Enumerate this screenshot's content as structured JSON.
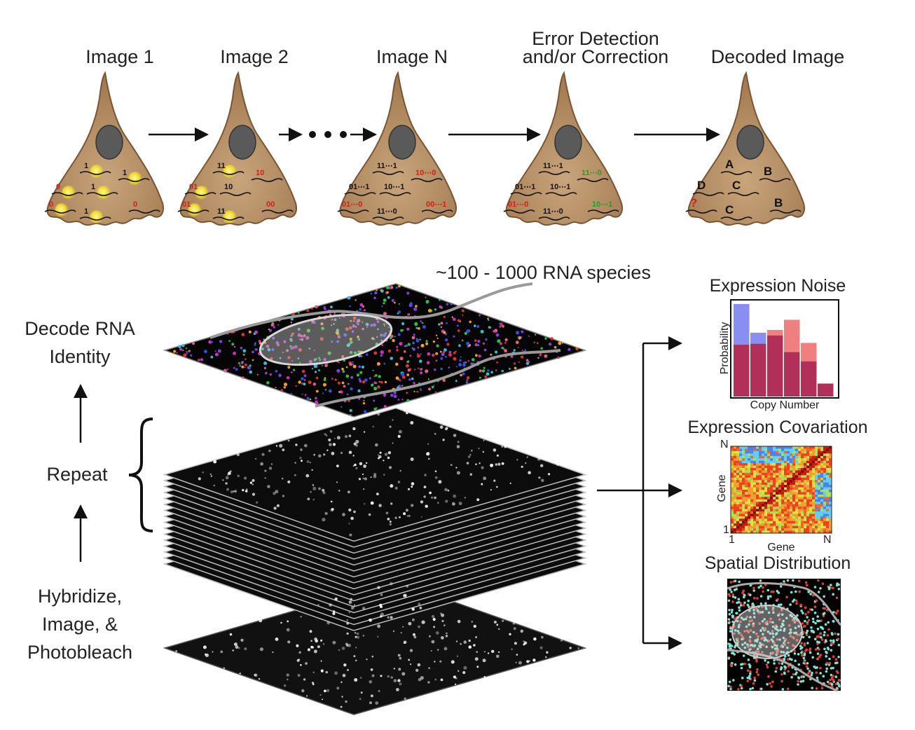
{
  "steps": [
    {
      "label": "Image 1"
    },
    {
      "label": "Image 2"
    },
    {
      "label": "Image N"
    },
    {
      "label_line1": "Error Detection",
      "label_line2": "and/or Correction"
    },
    {
      "label": "Decoded Image"
    }
  ],
  "cell_codes": {
    "image1": [
      "1",
      "1",
      "0",
      "1",
      "1",
      "0",
      "0"
    ],
    "image2": [
      "11",
      "10",
      "01",
      "10",
      "11",
      "00",
      "01"
    ],
    "imageN": [
      "11⋯1",
      "10⋯0",
      "01⋯1",
      "10⋯1",
      "11⋯0",
      "00⋯1",
      "01⋯0"
    ],
    "error": [
      "11⋯1",
      "11⋯0",
      "01⋯1",
      "10⋯1",
      "11⋯0",
      "10⋯1",
      "01⋯0"
    ],
    "decoded": [
      "A",
      "B",
      "D",
      "C",
      "C",
      "B",
      "?"
    ]
  },
  "species_label": "~100 - 1000 RNA species",
  "left_labels": {
    "decode_line1": "Decode RNA",
    "decode_line2": "Identity",
    "repeat": "Repeat",
    "hyb_line1": "Hybridize,",
    "hyb_line2": "Image, &",
    "hyb_line3": "Photobleach"
  },
  "noise_panel": {
    "title": "Expression Noise",
    "ylabel": "Probability",
    "xlabel": "Copy Number"
  },
  "covariation_panel": {
    "title": "Expression Covariation",
    "ylabel": "Gene",
    "xlabel": "Gene",
    "y_top": "N",
    "y_bottom": "1",
    "x_left": "1",
    "x_right": "N"
  },
  "spatial_panel": {
    "title": "Spatial Distribution"
  },
  "chart_data": {
    "type": "bar",
    "title": "Expression Noise",
    "xlabel": "Copy Number",
    "ylabel": "Probability",
    "series": [
      {
        "color": "#8a8ef0",
        "values": [
          1.0,
          0.69,
          0.0,
          0.0,
          0.0,
          0.0
        ]
      },
      {
        "color": "#f08080",
        "values": [
          0.0,
          0.0,
          0.72,
          0.83,
          0.58,
          0.14
        ]
      },
      {
        "color": "#b0305a",
        "values": [
          0.56,
          0.57,
          0.66,
          0.48,
          0.38,
          0.14
        ]
      }
    ]
  },
  "colors": {
    "cell_fill": "#b88d62",
    "cell_edge": "#7a5534",
    "nucleus": "#5a5a5a",
    "spot": "#f2e23a",
    "code_red": "#d0201a",
    "code_green": "#2a9a2a"
  }
}
